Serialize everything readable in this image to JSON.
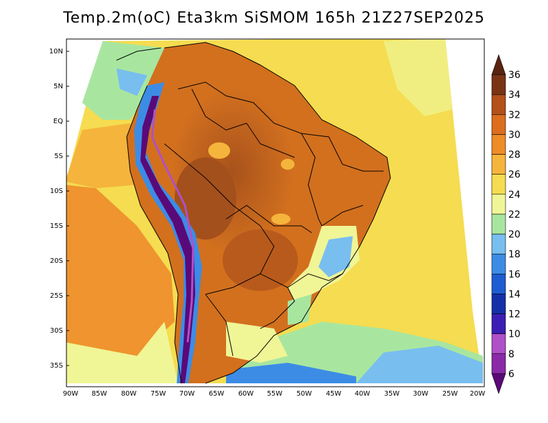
{
  "title": "Temp.2m(oC) Eta3km SiSMOM 165h 21Z27SEP2025",
  "map": {
    "variable": "Temp.2m",
    "units": "oC",
    "lat_labels": [
      "10N",
      "5N",
      "EQ",
      "5S",
      "10S",
      "15S",
      "20S",
      "25S",
      "30S",
      "35S"
    ],
    "lon_labels": [
      "90W",
      "85W",
      "80W",
      "75W",
      "70W",
      "65W",
      "60W",
      "55W",
      "50W",
      "45W",
      "40W",
      "35W",
      "30W",
      "25W",
      "20W"
    ]
  },
  "colorbar": {
    "levels": [
      "6",
      "8",
      "10",
      "12",
      "14",
      "16",
      "18",
      "20",
      "22",
      "24",
      "26",
      "28",
      "30",
      "32",
      "34",
      "36"
    ],
    "colors": [
      "#5a0a78",
      "#8a2aa8",
      "#b050c8",
      "#3c1eb4",
      "#1430a8",
      "#1e5cd2",
      "#3c8ce6",
      "#78beef",
      "#a8e6a0",
      "#f0f596",
      "#f5dc50",
      "#f5b43c",
      "#ee8c2a",
      "#dc6e1e",
      "#b4501a",
      "#7a3414",
      "#5a2410"
    ]
  },
  "colors": {
    "ocean_south": "#3c8ce6",
    "ocean_warm": "#f5dc50",
    "land_hot": "#c8641e",
    "andes_cold": "#5a0a78"
  }
}
